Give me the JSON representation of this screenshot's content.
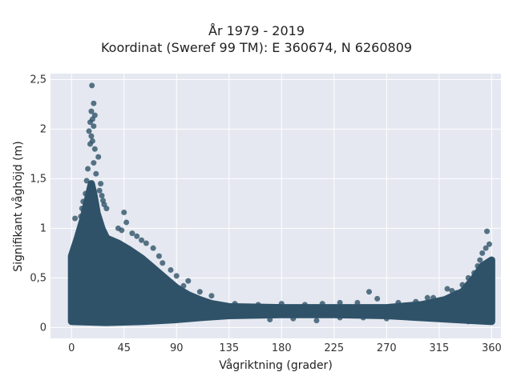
{
  "chart_data": {
    "type": "scatter",
    "title": "År 1979 - 2019",
    "subtitle": "Koordinat (Sweref 99 TM): E 360674, N 6260809",
    "xlabel": "Vågriktning (grader)",
    "ylabel": "Signifikant våghöjd (m)",
    "xlim": [
      -18,
      368
    ],
    "ylim": [
      -0.11,
      2.56
    ],
    "xticks": [
      0,
      45,
      90,
      135,
      180,
      225,
      270,
      315,
      360
    ],
    "xtick_labels": [
      "0",
      "45",
      "90",
      "135",
      "180",
      "225",
      "270",
      "315",
      "360"
    ],
    "yticks": [
      0,
      0.5,
      1,
      1.5,
      2,
      2.5
    ],
    "ytick_labels": [
      "0",
      "0,5",
      "1",
      "1,5",
      "2",
      "2,5"
    ],
    "grid": true,
    "marker_color": "#2f5269",
    "plot_background": "#e5e8f0",
    "points": [
      [
        17.5,
        2.44
      ],
      [
        19,
        2.26
      ],
      [
        17,
        2.18
      ],
      [
        20,
        2.14
      ],
      [
        18,
        2.1
      ],
      [
        16,
        2.07
      ],
      [
        19,
        2.03
      ],
      [
        15,
        1.98
      ],
      [
        17,
        1.93
      ],
      [
        18,
        1.88
      ],
      [
        16,
        1.85
      ],
      [
        20,
        1.8
      ],
      [
        23,
        1.72
      ],
      [
        19,
        1.66
      ],
      [
        14,
        1.6
      ],
      [
        21,
        1.55
      ],
      [
        13,
        1.48
      ],
      [
        25,
        1.45
      ],
      [
        24,
        1.38
      ],
      [
        26,
        1.33
      ],
      [
        12,
        1.35
      ],
      [
        10,
        1.27
      ],
      [
        27,
        1.28
      ],
      [
        9,
        1.2
      ],
      [
        28,
        1.24
      ],
      [
        30,
        1.2
      ],
      [
        45,
        1.16
      ],
      [
        8,
        1.12
      ],
      [
        3,
        1.1
      ],
      [
        47,
        1.06
      ],
      [
        40,
        1.0
      ],
      [
        43,
        0.98
      ],
      [
        52,
        0.95
      ],
      [
        56,
        0.92
      ],
      [
        60,
        0.88
      ],
      [
        64,
        0.85
      ],
      [
        70,
        0.8
      ],
      [
        75,
        0.72
      ],
      [
        78,
        0.65
      ],
      [
        85,
        0.58
      ],
      [
        90,
        0.52
      ],
      [
        100,
        0.47
      ],
      [
        96,
        0.42
      ],
      [
        110,
        0.36
      ],
      [
        120,
        0.32
      ],
      [
        255,
        0.36
      ],
      [
        262,
        0.29
      ],
      [
        305,
        0.3
      ],
      [
        322,
        0.39
      ],
      [
        330,
        0.35
      ],
      [
        340,
        0.5
      ],
      [
        345,
        0.55
      ],
      [
        350,
        0.68
      ],
      [
        355,
        0.8
      ],
      [
        358,
        0.84
      ],
      [
        356,
        0.97
      ],
      [
        352,
        0.75
      ],
      [
        348,
        0.62
      ],
      [
        335,
        0.43
      ],
      [
        326,
        0.37
      ],
      [
        140,
        0.24
      ],
      [
        160,
        0.23
      ],
      [
        180,
        0.24
      ],
      [
        200,
        0.23
      ],
      [
        215,
        0.24
      ],
      [
        230,
        0.25
      ],
      [
        245,
        0.25
      ],
      [
        280,
        0.25
      ],
      [
        295,
        0.26
      ],
      [
        310,
        0.3
      ],
      [
        170,
        0.08
      ],
      [
        190,
        0.09
      ],
      [
        210,
        0.07
      ],
      [
        230,
        0.1
      ],
      [
        250,
        0.1
      ],
      [
        270,
        0.09
      ],
      [
        290,
        0.1
      ],
      [
        320,
        0.08
      ],
      [
        340,
        0.06
      ],
      [
        360,
        0.07
      ]
    ]
  }
}
